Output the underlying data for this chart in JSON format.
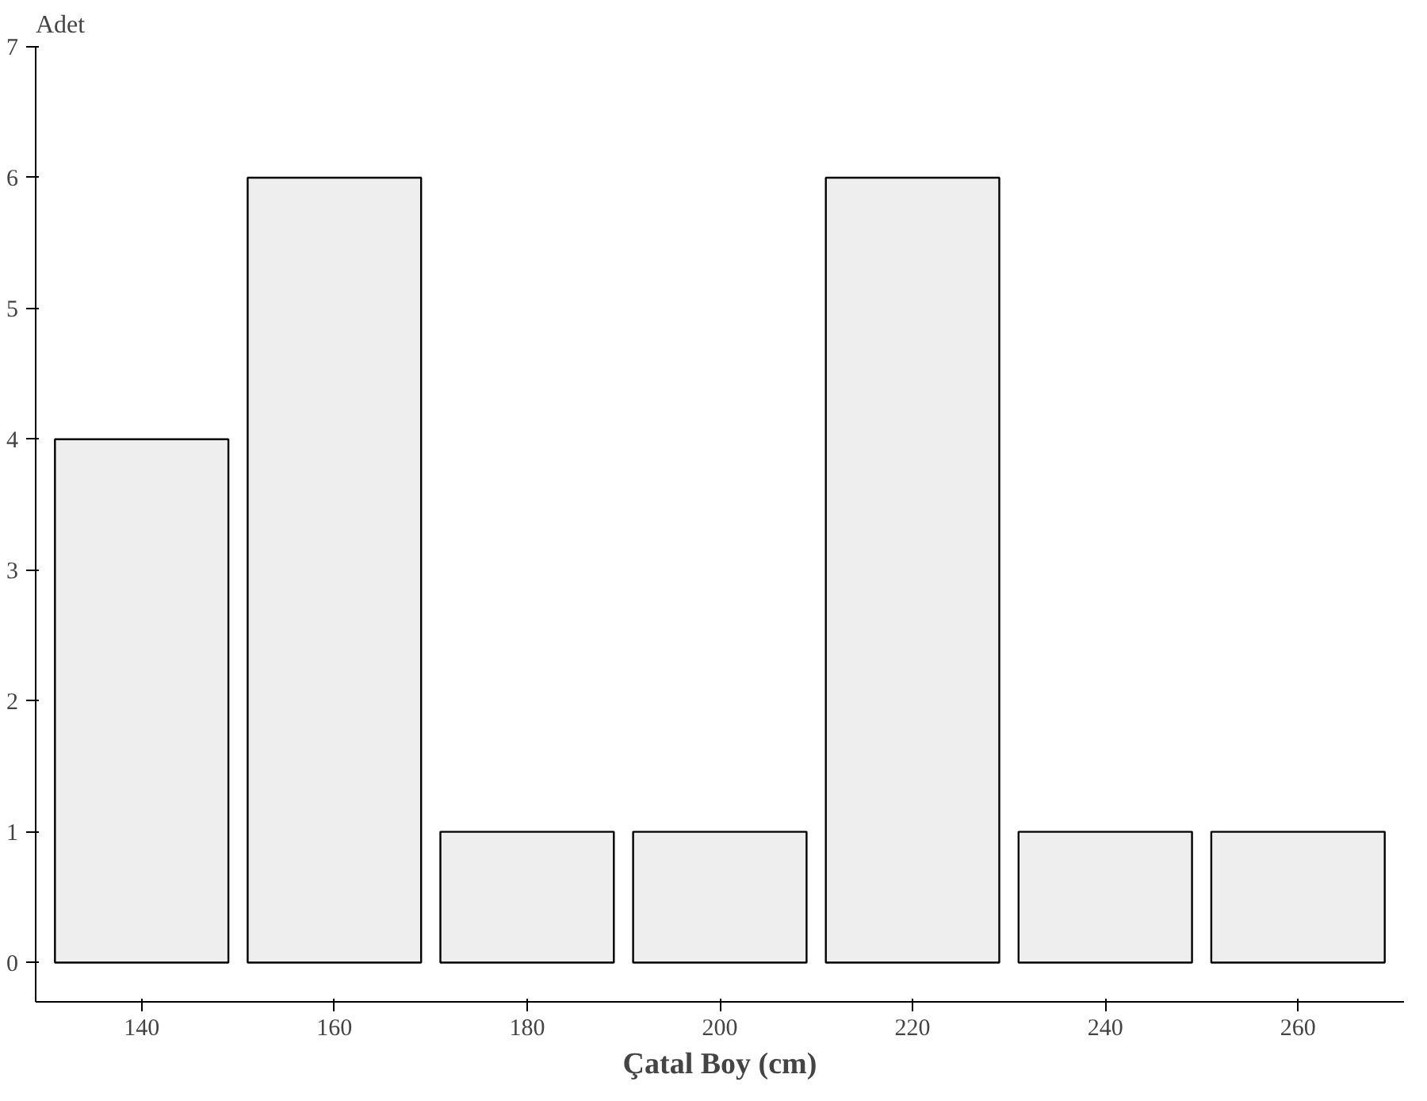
{
  "chart_data": {
    "type": "bar",
    "xlabel": "Çatal Boy (cm)",
    "ylabel": "Adet",
    "categories": [
      "140",
      "160",
      "180",
      "200",
      "220",
      "240",
      "260"
    ],
    "values": [
      4,
      6,
      1,
      1,
      6,
      1,
      1
    ],
    "color": "#eeeeee",
    "ylim": [
      -0.3,
      7
    ],
    "yticks": [
      0,
      1,
      2,
      3,
      4,
      5,
      6,
      7
    ],
    "grid": false
  }
}
